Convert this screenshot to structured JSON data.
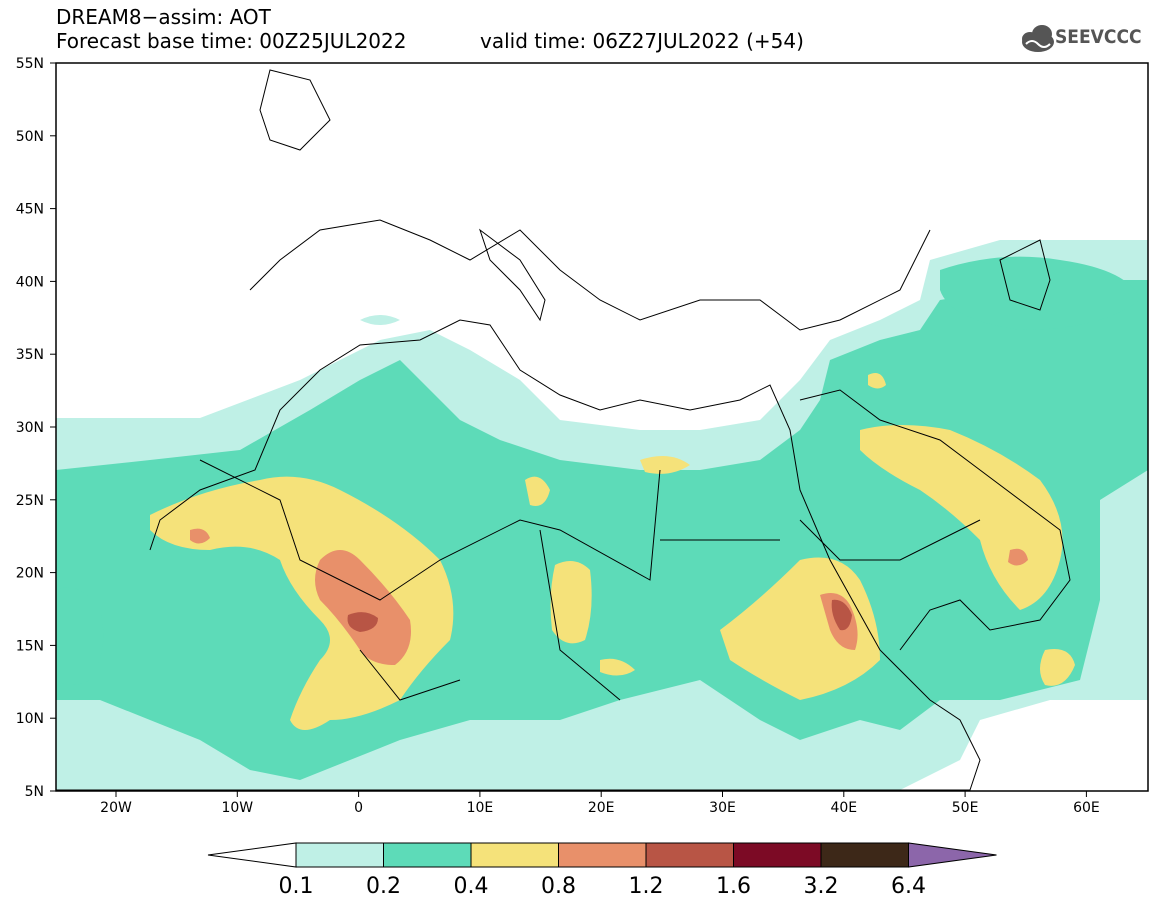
{
  "header": {
    "title": "DREAM8−assim: AOT",
    "base_time": "Forecast base time: 00Z25JUL2022",
    "valid_time": "valid time: 06Z27JUL2022 (+54)",
    "logo_text": "SEEVCCC",
    "logo_icon": "cloud-icon"
  },
  "axes": {
    "lat_labels": [
      "55N",
      "50N",
      "45N",
      "40N",
      "35N",
      "30N",
      "25N",
      "20N",
      "15N",
      "10N",
      "5N"
    ],
    "lon_labels": [
      "20W",
      "10W",
      "0",
      "10E",
      "20E",
      "30E",
      "40E",
      "50E",
      "60E"
    ]
  },
  "colorbar": {
    "labels": [
      "0.1",
      "0.2",
      "0.4",
      "0.8",
      "1.2",
      "1.6",
      "3.2",
      "6.4"
    ],
    "colors": [
      "#ffffff",
      "#bff0e6",
      "#5ddbb8",
      "#f5e27a",
      "#e8906a",
      "#b85545",
      "#7c0a25",
      "#3d2818",
      "#8c66aa"
    ]
  }
}
